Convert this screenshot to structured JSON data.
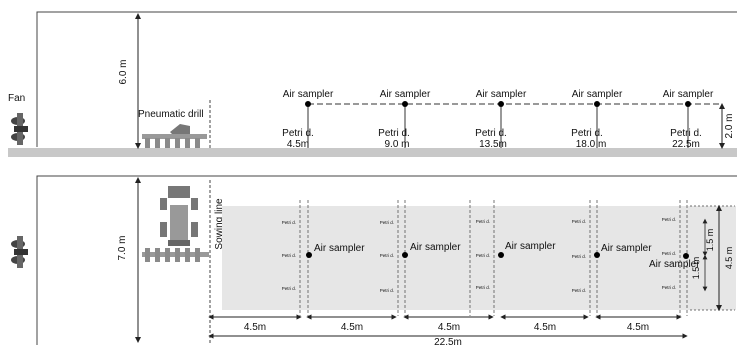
{
  "side_view": {
    "fan_label": "Fan",
    "drill_label": "Pneumatic drill",
    "height_label": "6.0 m",
    "sampler_height_label": "2.0 m",
    "samplers": [
      {
        "label": "Air sampler",
        "petri": "Petri d.",
        "distance": "4.5m"
      },
      {
        "label": "Air sampler",
        "petri": "Petri d.",
        "distance": "9.0 m"
      },
      {
        "label": "Air sampler",
        "petri": "Petri d.",
        "distance": "13.5m"
      },
      {
        "label": "Air sampler",
        "petri": "Petri d.",
        "distance": "18.0 m"
      },
      {
        "label": "Air sampler",
        "petri": "Petri d.",
        "distance": "22.5m"
      }
    ]
  },
  "top_view": {
    "width_label": "7.0 m",
    "sowing_line_label": "Sowing line",
    "field_width_label": "4.5 m",
    "spacing_labels": [
      "1.5 m",
      "1.5 m"
    ],
    "sampler_label": "Air sampler",
    "petri_label": "Petri d.",
    "segment_labels": [
      "4.5m",
      "4.5m",
      "4.5m",
      "4.5m",
      "4.5m"
    ],
    "total_label": "22.5m"
  },
  "colors": {
    "ground": "#c8c8c8",
    "field": "#e6e6e6",
    "machine": "#8a8a8a",
    "line": "#222222"
  }
}
